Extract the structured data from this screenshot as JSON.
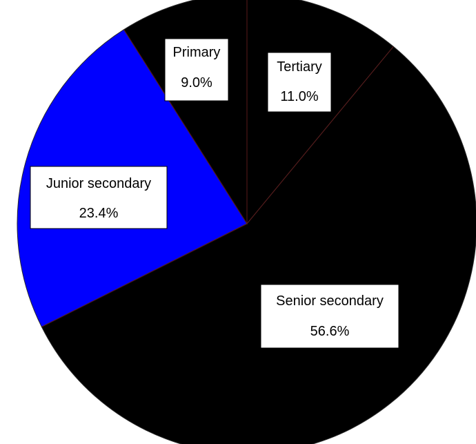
{
  "chart_data": {
    "type": "pie",
    "title": "",
    "slices": [
      {
        "label": "Tertiary",
        "value": 11.0,
        "display": "11.0%",
        "color": "#000000"
      },
      {
        "label": "Senior secondary",
        "value": 56.6,
        "display": "56.6%",
        "color": "#000000"
      },
      {
        "label": "Junior secondary",
        "value": 23.4,
        "display": "23.4%",
        "color": "#0000ff"
      },
      {
        "label": "Primary",
        "value": 9.0,
        "display": "9.0%",
        "color": "#000000"
      }
    ],
    "start_angle_deg": 0,
    "direction": "clockwise",
    "legend": "none",
    "data_labels": "boxed"
  }
}
